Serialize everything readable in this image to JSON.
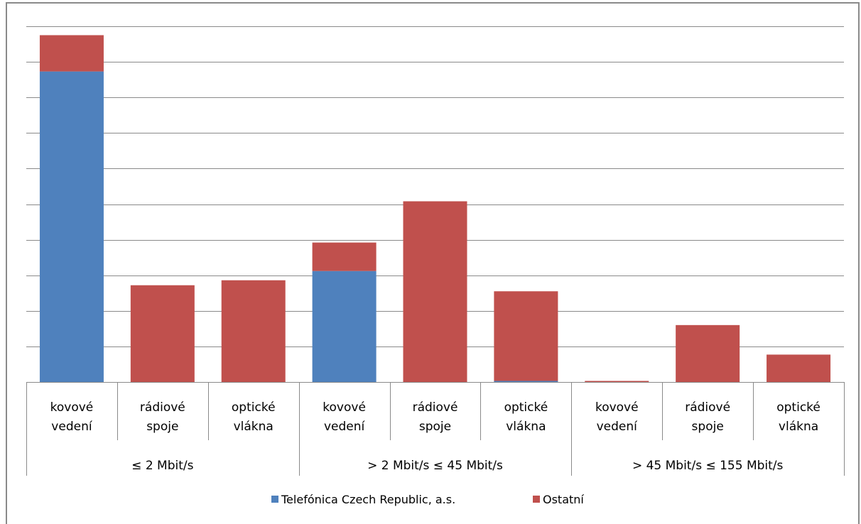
{
  "chart_data": {
    "type": "bar",
    "stacked": true,
    "title": "",
    "ylim": [
      0,
      100
    ],
    "grid": true,
    "legend_position": "bottom",
    "categories": [
      "kovové vedení",
      "rádiové spoje",
      "optické vlákna",
      "kovové vedení",
      "rádiové spoje",
      "optické vlákna",
      "kovové vedení",
      "rádiové spoje",
      "optické vlákna"
    ],
    "category_lines": [
      [
        "kovové",
        "vedení"
      ],
      [
        "rádiové",
        "spoje"
      ],
      [
        "optické",
        "vlákna"
      ],
      [
        "kovové",
        "vedení"
      ],
      [
        "rádiové",
        "spoje"
      ],
      [
        "optické",
        "vlákna"
      ],
      [
        "kovové",
        "vedení"
      ],
      [
        "rádiové",
        "spoje"
      ],
      [
        "optické",
        "vlákna"
      ]
    ],
    "groups": [
      "≤ 2 Mbit/s",
      "> 2 Mbit/s ≤ 45 Mbit/s",
      "> 45 Mbit/s ≤ 155 Mbit/s"
    ],
    "series": [
      {
        "name": "Telefónica Czech Republic, a.s.",
        "color": "#4f81bd",
        "values": [
          87.3,
          0,
          0,
          31.2,
          0,
          0.3,
          0,
          0,
          0
        ]
      },
      {
        "name": "Ostatní",
        "color": "#c0504d",
        "values": [
          10.2,
          27.2,
          28.6,
          8.0,
          50.8,
          25.2,
          0.3,
          16.0,
          7.7
        ]
      }
    ]
  }
}
